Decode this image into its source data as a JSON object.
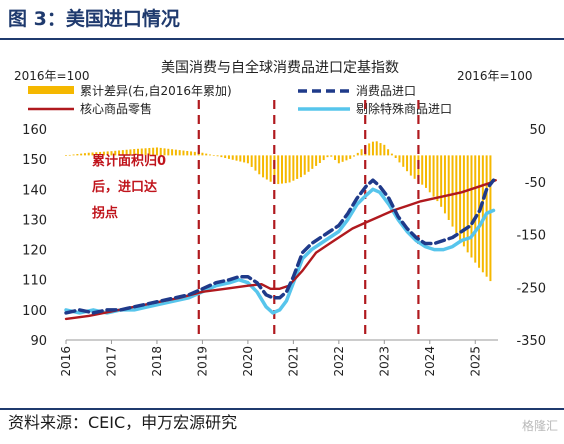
{
  "header": {
    "title": "图 3：美国进口情况"
  },
  "footer": {
    "source": "资料来源：CEIC，申万宏源研究",
    "watermark": "格隆汇"
  },
  "chart_data": {
    "type": "line",
    "title": "美国消费与自全球消费品进口定基指数",
    "left_axis_note": "2016年=100",
    "right_axis_note": "2016年=100",
    "x_ticks": [
      "2016",
      "2017",
      "2018",
      "2019",
      "2020",
      "2021",
      "2022",
      "2023",
      "2024",
      "2025"
    ],
    "x_range": [
      2016.0,
      2025.5
    ],
    "y_left_range": [
      90,
      160
    ],
    "y_left_ticks": [
      90,
      100,
      110,
      120,
      130,
      140,
      150,
      160
    ],
    "y_right_range": [
      -350,
      50
    ],
    "y_right_ticks": [
      -350,
      -250,
      -150,
      -50,
      50
    ],
    "grid": false,
    "legend": [
      {
        "label": "累计差异(右,自2016年累加)",
        "style": "bar"
      },
      {
        "label": "消费品进口",
        "style": "dash"
      },
      {
        "label": "核心商品零售",
        "style": "line"
      },
      {
        "label": "剔除特殊商品进口",
        "style": "line"
      }
    ],
    "annotation": [
      "累计面积归0",
      "后，进口达",
      "拐点"
    ],
    "vlines": [
      2018.92,
      2020.58,
      2022.58,
      2023.75
    ],
    "colors": {
      "bar": "#f5b800",
      "consumer_imports": "#1f3a8a",
      "core_retail": "#b0191e",
      "ex_special_imports": "#57c5ec",
      "vline": "#b0191e",
      "annotation": "#c0141c"
    },
    "series": [
      {
        "name": "消费品进口",
        "axis": "left",
        "x": [
          2016.0,
          2016.3,
          2016.6,
          2016.9,
          2017.2,
          2017.5,
          2017.8,
          2018.1,
          2018.4,
          2018.7,
          2019.0,
          2019.3,
          2019.6,
          2019.8,
          2020.0,
          2020.2,
          2020.4,
          2020.55,
          2020.7,
          2020.85,
          2021.0,
          2021.2,
          2021.4,
          2021.6,
          2021.8,
          2022.0,
          2022.2,
          2022.4,
          2022.6,
          2022.75,
          2022.9,
          2023.1,
          2023.3,
          2023.5,
          2023.7,
          2023.9,
          2024.1,
          2024.3,
          2024.5,
          2024.7,
          2024.9,
          2025.1,
          2025.25,
          2025.4
        ],
        "y": [
          99,
          100,
          99,
          100,
          100,
          101,
          102,
          103,
          104,
          105,
          107,
          109,
          110,
          111,
          111,
          109,
          105,
          104,
          104,
          106,
          111,
          119,
          122,
          124,
          126,
          128,
          132,
          137,
          141,
          143,
          141,
          137,
          131,
          127,
          124,
          122,
          122,
          123,
          124,
          126,
          128,
          133,
          140,
          143
        ]
      },
      {
        "name": "核心商品零售",
        "axis": "left",
        "x": [
          2016.0,
          2016.5,
          2017.0,
          2017.5,
          2018.0,
          2018.5,
          2019.0,
          2019.5,
          2020.0,
          2020.3,
          2020.5,
          2020.7,
          2020.9,
          2021.2,
          2021.5,
          2021.8,
          2022.0,
          2022.3,
          2022.6,
          2022.9,
          2023.2,
          2023.5,
          2023.8,
          2024.1,
          2024.4,
          2024.7,
          2025.0,
          2025.3,
          2025.45
        ],
        "y": [
          97,
          98,
          99.5,
          101,
          102.5,
          104,
          106,
          107,
          108,
          108.5,
          107,
          107,
          108,
          113,
          119,
          122,
          124,
          127,
          129,
          131,
          133,
          134.5,
          136,
          137,
          138,
          139,
          140.5,
          142,
          143
        ]
      },
      {
        "name": "剔除特殊商品进口",
        "axis": "left",
        "x": [
          2016.0,
          2016.3,
          2016.6,
          2016.9,
          2017.2,
          2017.5,
          2017.8,
          2018.1,
          2018.4,
          2018.7,
          2019.0,
          2019.3,
          2019.6,
          2019.8,
          2020.0,
          2020.2,
          2020.4,
          2020.55,
          2020.7,
          2020.85,
          2021.0,
          2021.2,
          2021.4,
          2021.6,
          2021.8,
          2022.0,
          2022.2,
          2022.4,
          2022.6,
          2022.75,
          2022.9,
          2023.1,
          2023.3,
          2023.5,
          2023.7,
          2023.9,
          2024.1,
          2024.3,
          2024.5,
          2024.7,
          2024.9,
          2025.1,
          2025.25,
          2025.4
        ],
        "y": [
          100,
          99,
          100,
          99,
          100,
          100,
          101,
          102,
          103,
          104,
          106,
          108,
          109,
          110,
          109,
          106,
          101,
          99,
          100,
          103,
          109,
          117,
          120,
          122,
          124,
          126,
          130,
          135,
          138,
          140,
          139,
          135,
          130,
          126,
          123,
          121,
          120,
          120,
          121,
          123,
          124,
          128,
          132,
          133
        ]
      },
      {
        "name": "累计差异(右,自2016年累加)",
        "axis": "right",
        "style": "bar",
        "x": [
          2016.0,
          2016.5,
          2017.0,
          2017.5,
          2018.0,
          2018.5,
          2019.0,
          2019.5,
          2020.0,
          2020.3,
          2020.6,
          2020.9,
          2021.2,
          2021.5,
          2021.8,
          2022.0,
          2022.3,
          2022.6,
          2022.8,
          2023.0,
          2023.3,
          2023.6,
          2023.9,
          2024.2,
          2024.5,
          2024.8,
          2025.1,
          2025.4
        ],
        "y": [
          0,
          5,
          8,
          12,
          15,
          10,
          5,
          -5,
          -15,
          -40,
          -55,
          -52,
          -40,
          -20,
          0,
          -15,
          -5,
          20,
          28,
          20,
          -10,
          -40,
          -60,
          -90,
          -135,
          -180,
          -215,
          -245
        ]
      }
    ]
  }
}
